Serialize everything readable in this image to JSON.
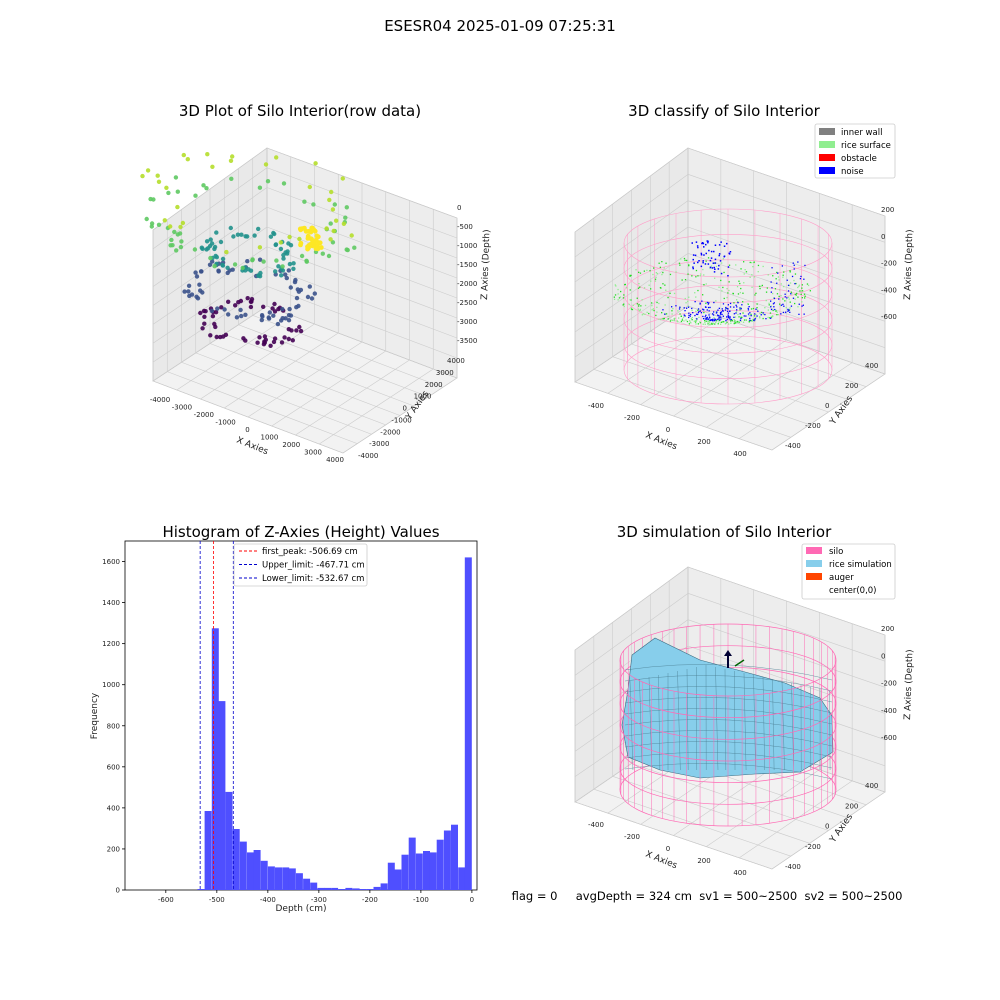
{
  "figure": {
    "suptitle": "ESESR04 2025-01-09 07:25:31"
  },
  "chart_data": [
    {
      "type": "scatter",
      "title": "3D Plot of Silo Interior(row data)",
      "xlabel": "X Axies",
      "ylabel": "Y Axies",
      "zlabel": "Z Axies (Depth)",
      "xticks": [
        "-4000",
        "-3000",
        "-2000",
        "-1000",
        "0",
        "1000",
        "2000",
        "3000",
        "4000"
      ],
      "yticks": [
        "-4000",
        "-3000",
        "-2000",
        "-1000",
        "0",
        "1000",
        "2000",
        "3000",
        "4000"
      ],
      "zticks": [
        "0",
        "-500",
        "-1000",
        "-1500",
        "-2000",
        "-2500",
        "-3000",
        "-3500"
      ],
      "colormap": "viridis"
    },
    {
      "type": "scatter",
      "title": "3D classify of Silo Interior",
      "xlabel": "X Axies",
      "ylabel": "Y Axies",
      "zlabel": "Z Axies (Depth)",
      "xticks": [
        "-400",
        "-200",
        "0",
        "200",
        "400"
      ],
      "yticks": [
        "-400",
        "-200",
        "0",
        "200",
        "400"
      ],
      "zticks": [
        "200",
        "0",
        "-200",
        "-400",
        "-600"
      ],
      "legend": [
        {
          "label": "inner wall",
          "color": "#808080"
        },
        {
          "label": "rice surface",
          "color": "#90ee90"
        },
        {
          "label": "obstacle",
          "color": "#ff0000"
        },
        {
          "label": "noise",
          "color": "#0000ff"
        }
      ],
      "legend_position": "top-right"
    },
    {
      "type": "bar",
      "title": "Histogram of Z-Axies (Height) Values",
      "xlabel": "Depth (cm)",
      "ylabel": "Frequency",
      "xlim": [
        -680,
        10
      ],
      "ylim": [
        0,
        1700
      ],
      "xticks": [
        -600,
        -500,
        -400,
        -300,
        -200,
        -100,
        0
      ],
      "yticks": [
        0,
        200,
        400,
        600,
        800,
        1000,
        1200,
        1400,
        1600
      ],
      "bin_width": 13.8,
      "bins": [
        {
          "x": -531,
          "v": 5
        },
        {
          "x": -517,
          "v": 385
        },
        {
          "x": -503,
          "v": 1275
        },
        {
          "x": -490,
          "v": 920
        },
        {
          "x": -476,
          "v": 478
        },
        {
          "x": -462,
          "v": 297
        },
        {
          "x": -448,
          "v": 236
        },
        {
          "x": -434,
          "v": 183
        },
        {
          "x": -421,
          "v": 195
        },
        {
          "x": -407,
          "v": 142
        },
        {
          "x": -393,
          "v": 115
        },
        {
          "x": -379,
          "v": 110
        },
        {
          "x": -365,
          "v": 110
        },
        {
          "x": -352,
          "v": 105
        },
        {
          "x": -338,
          "v": 82
        },
        {
          "x": -324,
          "v": 55
        },
        {
          "x": -310,
          "v": 36
        },
        {
          "x": -296,
          "v": 10
        },
        {
          "x": -283,
          "v": 10
        },
        {
          "x": -269,
          "v": 10
        },
        {
          "x": -255,
          "v": 5
        },
        {
          "x": -241,
          "v": 10
        },
        {
          "x": -227,
          "v": 8
        },
        {
          "x": -214,
          "v": 5
        },
        {
          "x": -200,
          "v": 5
        },
        {
          "x": -186,
          "v": 15
        },
        {
          "x": -172,
          "v": 32
        },
        {
          "x": -158,
          "v": 133
        },
        {
          "x": -145,
          "v": 100
        },
        {
          "x": -131,
          "v": 172
        },
        {
          "x": -117,
          "v": 255
        },
        {
          "x": -103,
          "v": 178
        },
        {
          "x": -89,
          "v": 190
        },
        {
          "x": -76,
          "v": 183
        },
        {
          "x": -62,
          "v": 245
        },
        {
          "x": -48,
          "v": 290
        },
        {
          "x": -34,
          "v": 318
        },
        {
          "x": -20,
          "v": 110
        },
        {
          "x": -7,
          "v": 1620
        }
      ],
      "bar_color": "#4f4fff",
      "lines": [
        {
          "label": "first_peak: -506.69 cm",
          "value": -506.69,
          "color": "#ff0000"
        },
        {
          "label": "Upper_limit: -467.71 cm",
          "value": -467.71,
          "color": "#0000cc"
        },
        {
          "label": "Lower_limit: -532.67 cm",
          "value": -532.67,
          "color": "#0000cc"
        }
      ],
      "legend_position": "top-center"
    },
    {
      "type": "area",
      "title": "3D simulation of Silo Interior",
      "xlabel": "X Axies",
      "ylabel": "Y Axies",
      "zlabel": "Z Axies (Depth)",
      "xticks": [
        "-400",
        "-200",
        "0",
        "200",
        "400"
      ],
      "yticks": [
        "-400",
        "-200",
        "0",
        "200",
        "400"
      ],
      "zticks": [
        "200",
        "0",
        "-200",
        "-400",
        "-600"
      ],
      "legend": [
        {
          "label": "silo",
          "color": "#ff69b4"
        },
        {
          "label": "rice simulation",
          "color": "#87ceeb"
        },
        {
          "label": "auger",
          "color": "#ff4500"
        },
        {
          "label": "center(0,0)",
          "color": "#ffffff"
        }
      ],
      "legend_position": "top-right"
    }
  ],
  "footer": {
    "text": "flag = 0     avgDepth = 324 cm  sv1 = 500~2500  sv2 = 500~2500"
  }
}
